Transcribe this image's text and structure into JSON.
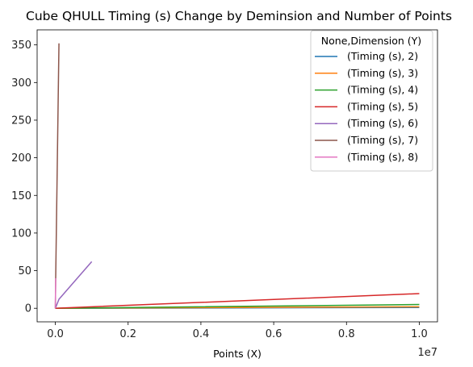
{
  "chart_data": {
    "type": "line",
    "title": "Cube QHULL Timing (s) Change by Deminsion and Number of Points",
    "xlabel": "Points (X)",
    "ylabel": "",
    "x_offset_label": "1e7",
    "xlim": [
      -500000,
      10500000
    ],
    "ylim": [
      -18,
      370
    ],
    "x_ticks": [
      0,
      2000000,
      4000000,
      6000000,
      8000000,
      10000000
    ],
    "x_tick_labels": [
      "0.0",
      "0.2",
      "0.4",
      "0.6",
      "0.8",
      "1.0"
    ],
    "y_ticks": [
      0,
      50,
      100,
      150,
      200,
      250,
      300,
      350
    ],
    "y_tick_labels": [
      "0",
      "50",
      "100",
      "150",
      "200",
      "250",
      "300",
      "350"
    ],
    "grid": false,
    "legend_title": "None,Dimension (Y)",
    "legend_position": "top-right",
    "series": [
      {
        "name": "(Timing (s), 2)",
        "color": "#1f77b4",
        "x": [
          10,
          100,
          1000,
          10000,
          100000,
          1000000,
          10000000
        ],
        "y": [
          0,
          0,
          0,
          0,
          0.01,
          0.1,
          1
        ]
      },
      {
        "name": "(Timing (s), 3)",
        "color": "#ff7f0e",
        "x": [
          10,
          100,
          1000,
          10000,
          100000,
          1000000,
          10000000
        ],
        "y": [
          0,
          0,
          0,
          0,
          0.02,
          0.3,
          2
        ]
      },
      {
        "name": "(Timing (s), 4)",
        "color": "#2ca02c",
        "x": [
          10,
          100,
          1000,
          10000,
          100000,
          1000000,
          10000000
        ],
        "y": [
          0,
          0,
          0,
          0,
          0.05,
          0.5,
          5
        ]
      },
      {
        "name": "(Timing (s), 5)",
        "color": "#d62728",
        "x": [
          10,
          100,
          1000,
          10000,
          100000,
          1000000,
          10000000
        ],
        "y": [
          0,
          0,
          0,
          0.02,
          0.2,
          2,
          19.5
        ]
      },
      {
        "name": "(Timing (s), 6)",
        "color": "#9467bd",
        "x": [
          10,
          100,
          1000,
          10000,
          100000,
          1000000
        ],
        "y": [
          0,
          0,
          0.1,
          1,
          12,
          62
        ]
      },
      {
        "name": "(Timing (s), 7)",
        "color": "#8c564b",
        "x": [
          10,
          100,
          1000,
          10000,
          100000
        ],
        "y": [
          0,
          0.1,
          1,
          40,
          352
        ]
      },
      {
        "name": "(Timing (s), 8)",
        "color": "#e377c2",
        "x": [
          10,
          100,
          1000,
          10000
        ],
        "y": [
          0,
          0.5,
          5,
          40
        ]
      }
    ]
  }
}
